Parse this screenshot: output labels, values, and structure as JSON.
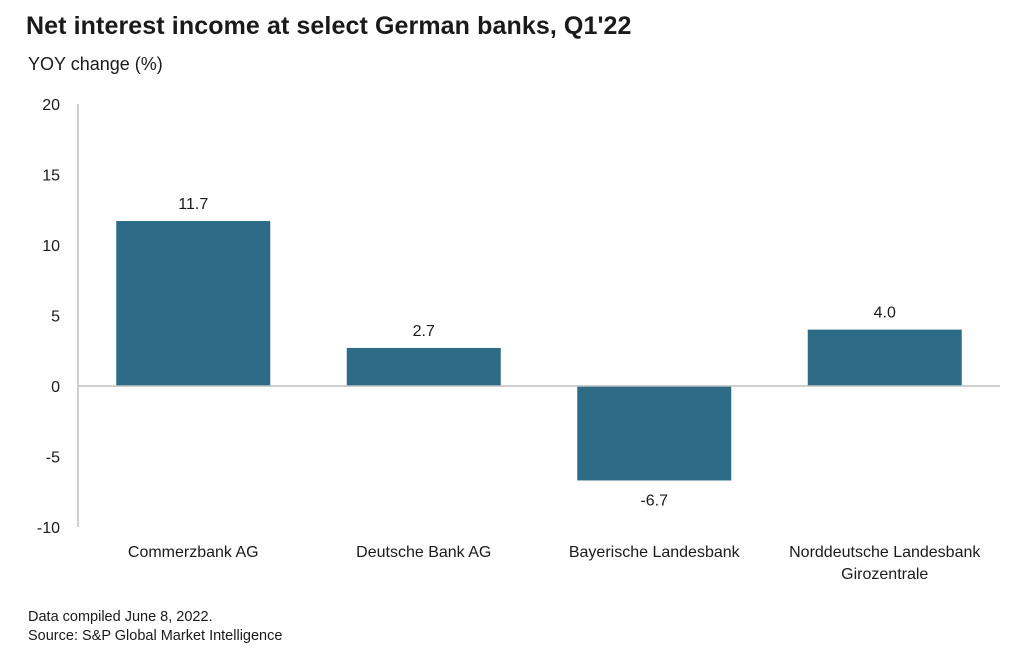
{
  "title": "Net interest income at select German banks, Q1'22",
  "subtitle": "YOY change (%)",
  "footnote": {
    "line1": "Data compiled June 8, 2022.",
    "line2": "Source: S&P Global Market Intelligence"
  },
  "colors": {
    "bar": "#2e6b87",
    "axis": "#bfbfbf",
    "text": "#1a1a1a"
  },
  "chart_data": {
    "type": "bar",
    "categories": [
      [
        "Commerzbank AG"
      ],
      [
        "Deutsche Bank AG"
      ],
      [
        "Bayerische Landesbank"
      ],
      [
        "Norddeutsche Landesbank",
        "Girozentrale"
      ]
    ],
    "values": [
      11.7,
      2.7,
      -6.7,
      4.0
    ],
    "data_labels": [
      "11.7",
      "2.7",
      "-6.7",
      "4.0"
    ],
    "ylim": [
      -10,
      20
    ],
    "yticks": [
      20,
      15,
      10,
      5,
      0,
      -5,
      -10
    ],
    "ytick_labels": [
      "20",
      "15",
      "10",
      "5",
      "0",
      "-5",
      "-10"
    ],
    "grid": false,
    "legend": "none"
  }
}
